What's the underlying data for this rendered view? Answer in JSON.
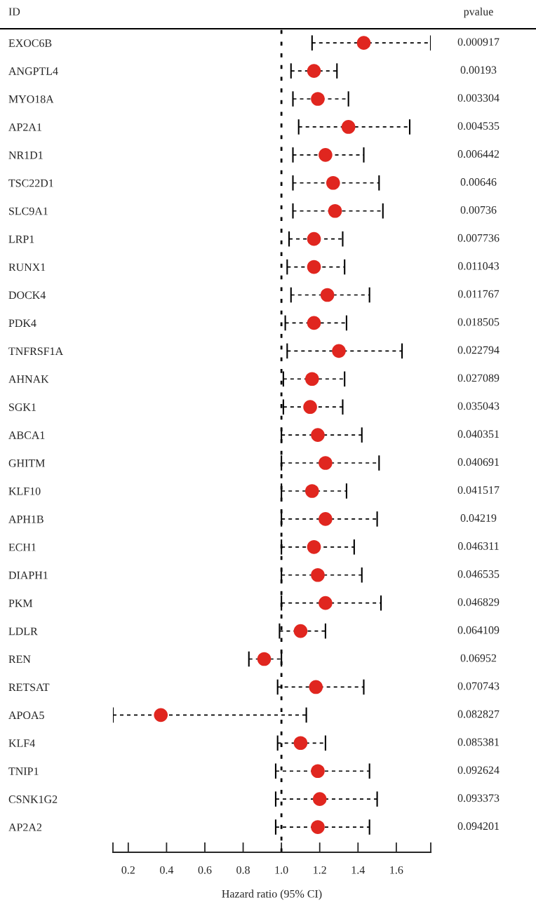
{
  "chart_data": {
    "type": "scatter",
    "orientation": "horizontal",
    "xlabel": "Hazard ratio (95% CI)",
    "categories": [
      "EXOC6B",
      "ANGPTL4",
      "MYO18A",
      "AP2A1",
      "NR1D1",
      "TSC22D1",
      "SLC9A1",
      "LRP1",
      "RUNX1",
      "DOCK4",
      "PDK4",
      "TNFRSF1A",
      "AHNAK",
      "SGK1",
      "ABCA1",
      "GHITM",
      "KLF10",
      "APH1B",
      "ECH1",
      "DIAPH1",
      "PKM",
      "LDLR",
      "REN",
      "RETSAT",
      "APOA5",
      "KLF4",
      "TNIP1",
      "CSNK1G2",
      "AP2A2"
    ],
    "values": [
      1.43,
      1.17,
      1.19,
      1.35,
      1.23,
      1.27,
      1.28,
      1.17,
      1.17,
      1.24,
      1.17,
      1.3,
      1.16,
      1.15,
      1.19,
      1.23,
      1.16,
      1.23,
      1.17,
      1.19,
      1.23,
      1.1,
      0.91,
      1.18,
      0.37,
      1.1,
      1.19,
      1.2,
      1.19
    ],
    "errors": [
      [
        1.16,
        1.78
      ],
      [
        1.05,
        1.29
      ],
      [
        1.06,
        1.35
      ],
      [
        1.09,
        1.67
      ],
      [
        1.06,
        1.43
      ],
      [
        1.06,
        1.51
      ],
      [
        1.06,
        1.53
      ],
      [
        1.04,
        1.32
      ],
      [
        1.03,
        1.33
      ],
      [
        1.05,
        1.46
      ],
      [
        1.02,
        1.34
      ],
      [
        1.03,
        1.63
      ],
      [
        1.01,
        1.33
      ],
      [
        1.01,
        1.32
      ],
      [
        1.0,
        1.42
      ],
      [
        1.0,
        1.51
      ],
      [
        1.0,
        1.34
      ],
      [
        1.0,
        1.5
      ],
      [
        1.0,
        1.38
      ],
      [
        1.0,
        1.42
      ],
      [
        1.0,
        1.52
      ],
      [
        0.99,
        1.23
      ],
      [
        0.83,
        1.0
      ],
      [
        0.98,
        1.43
      ],
      [
        0.12,
        1.13
      ],
      [
        0.98,
        1.23
      ],
      [
        0.97,
        1.46
      ],
      [
        0.97,
        1.5
      ],
      [
        0.97,
        1.46
      ]
    ],
    "color": "#e0261f",
    "marker": "circle",
    "line_style": "dashed",
    "xlim": [
      0.12,
      1.78
    ],
    "xticks": [
      {
        "value": 0.12,
        "label": null
      },
      0.2,
      0.4,
      0.6,
      0.8,
      {
        "value": 1.0,
        "label": "1.0"
      },
      1.2,
      1.4,
      1.6,
      {
        "value": 1.78,
        "label": null
      }
    ],
    "ref_lines": [
      {
        "axis": "x",
        "value": 1.0,
        "line_style": "dotted",
        "color": "#000000"
      }
    ],
    "grid": false,
    "legend": false,
    "annotations": [
      "ID",
      "pvalue",
      "0.000917",
      "0.00193",
      "0.003304",
      "0.004535",
      "0.006442",
      "0.00646",
      "0.00736",
      "0.007736",
      "0.011043",
      "0.011767",
      "0.018505",
      "0.022794",
      "0.027089",
      "0.035043",
      "0.040351",
      "0.040691",
      "0.041517",
      "0.04219",
      "0.046311",
      "0.046535",
      "0.046829",
      "0.064109",
      "0.06952",
      "0.070743",
      "0.082827",
      "0.085381",
      "0.092624",
      "0.093373",
      "0.094201"
    ]
  }
}
